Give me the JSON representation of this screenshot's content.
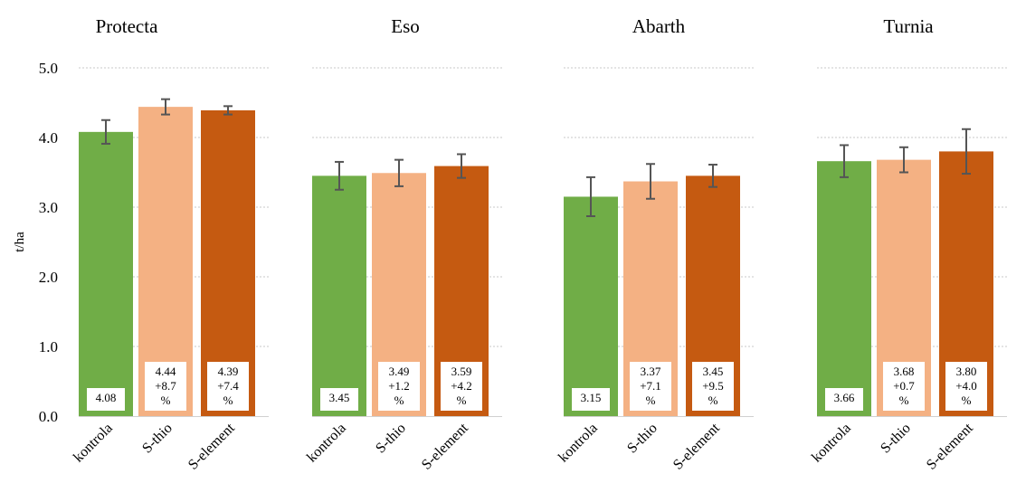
{
  "chart_data": {
    "type": "bar",
    "ylabel": "t/ha",
    "ylim": [
      0,
      5
    ],
    "yticks": [
      "0.0",
      "1.0",
      "2.0",
      "3.0",
      "4.0",
      "5.0"
    ],
    "grid": true,
    "categories": [
      "kontrola",
      "S-thio",
      "S-element"
    ],
    "colors": [
      "#70ad47",
      "#f4b183",
      "#c55a11"
    ],
    "panels": [
      {
        "title": "Protecta",
        "values": [
          4.08,
          4.44,
          4.39
        ],
        "errors": [
          0.17,
          0.11,
          0.06
        ],
        "labels": [
          [
            "4.08"
          ],
          [
            "4.44",
            "+8.7",
            "%"
          ],
          [
            "4.39",
            "+7.4",
            "%"
          ]
        ]
      },
      {
        "title": "Eso",
        "values": [
          3.45,
          3.49,
          3.59
        ],
        "errors": [
          0.2,
          0.19,
          0.17
        ],
        "labels": [
          [
            "3.45"
          ],
          [
            "3.49",
            "+1.2",
            "%"
          ],
          [
            "3.59",
            "+4.2",
            "%"
          ]
        ]
      },
      {
        "title": "Abarth",
        "values": [
          3.15,
          3.37,
          3.45
        ],
        "errors": [
          0.28,
          0.25,
          0.16
        ],
        "labels": [
          [
            "3.15"
          ],
          [
            "3.37",
            "+7.1",
            "%"
          ],
          [
            "3.45",
            "+9.5",
            "%"
          ]
        ]
      },
      {
        "title": "Turnia",
        "values": [
          3.66,
          3.68,
          3.8
        ],
        "errors": [
          0.23,
          0.18,
          0.32
        ],
        "labels": [
          [
            "3.66"
          ],
          [
            "3.68",
            "+0.7",
            "%"
          ],
          [
            "3.80",
            "+4.0",
            "%"
          ]
        ]
      }
    ]
  }
}
